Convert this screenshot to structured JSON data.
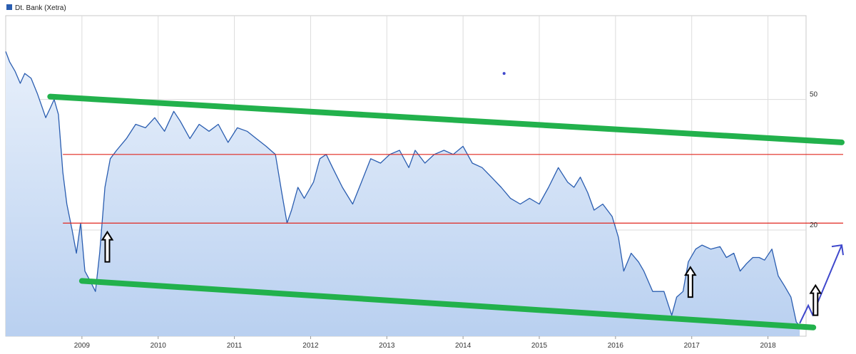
{
  "chart_data": {
    "type": "line",
    "series": [
      {
        "name": "Dt. Bank (Xetra)",
        "color": "#2a5db0",
        "points": [
          [
            "2008-01-01",
            70
          ],
          [
            "2008-01-20",
            65
          ],
          [
            "2008-02-15",
            61
          ],
          [
            "2008-03-10",
            56
          ],
          [
            "2008-04-01",
            60
          ],
          [
            "2008-05-01",
            58
          ],
          [
            "2008-06-01",
            52
          ],
          [
            "2008-06-20",
            48
          ],
          [
            "2008-07-10",
            44
          ],
          [
            "2008-08-01",
            47
          ],
          [
            "2008-08-20",
            50
          ],
          [
            "2008-09-10",
            45
          ],
          [
            "2008-10-01",
            30
          ],
          [
            "2008-10-20",
            24
          ],
          [
            "2008-11-15",
            20
          ],
          [
            "2008-12-05",
            17
          ],
          [
            "2008-12-25",
            21
          ],
          [
            "2009-01-15",
            15
          ],
          [
            "2009-02-10",
            14
          ],
          [
            "2009-03-05",
            13
          ],
          [
            "2009-03-25",
            17
          ],
          [
            "2009-04-20",
            27
          ],
          [
            "2009-05-15",
            33
          ],
          [
            "2009-06-15",
            35
          ],
          [
            "2009-08-01",
            38
          ],
          [
            "2009-09-15",
            42
          ],
          [
            "2009-11-01",
            41
          ],
          [
            "2009-12-15",
            44
          ],
          [
            "2010-02-01",
            40
          ],
          [
            "2010-03-15",
            46
          ],
          [
            "2010-04-15",
            43
          ],
          [
            "2010-06-01",
            38
          ],
          [
            "2010-07-15",
            42
          ],
          [
            "2010-09-01",
            40
          ],
          [
            "2010-10-15",
            42
          ],
          [
            "2010-12-01",
            37
          ],
          [
            "2011-01-15",
            41
          ],
          [
            "2011-03-01",
            40
          ],
          [
            "2011-04-15",
            38
          ],
          [
            "2011-06-01",
            36
          ],
          [
            "2011-07-15",
            34
          ],
          [
            "2011-08-15",
            26
          ],
          [
            "2011-09-10",
            21
          ],
          [
            "2011-10-01",
            23
          ],
          [
            "2011-11-01",
            27
          ],
          [
            "2011-12-01",
            25
          ],
          [
            "2012-01-15",
            28
          ],
          [
            "2012-02-15",
            33
          ],
          [
            "2012-03-15",
            34
          ],
          [
            "2012-04-15",
            31
          ],
          [
            "2012-06-01",
            27
          ],
          [
            "2012-07-20",
            24
          ],
          [
            "2012-09-01",
            28
          ],
          [
            "2012-10-15",
            33
          ],
          [
            "2012-12-01",
            32
          ],
          [
            "2013-01-15",
            34
          ],
          [
            "2013-03-01",
            35
          ],
          [
            "2013-04-15",
            31
          ],
          [
            "2013-05-15",
            35
          ],
          [
            "2013-07-01",
            32
          ],
          [
            "2013-08-15",
            34
          ],
          [
            "2013-10-01",
            35
          ],
          [
            "2013-11-15",
            34
          ],
          [
            "2014-01-01",
            36
          ],
          [
            "2014-02-15",
            32
          ],
          [
            "2014-04-01",
            31
          ],
          [
            "2014-05-15",
            29
          ],
          [
            "2014-07-01",
            27
          ],
          [
            "2014-08-15",
            25
          ],
          [
            "2014-10-01",
            24
          ],
          [
            "2014-11-15",
            25
          ],
          [
            "2015-01-01",
            24
          ],
          [
            "2015-02-15",
            27
          ],
          [
            "2015-04-01",
            31
          ],
          [
            "2015-05-15",
            28
          ],
          [
            "2015-06-15",
            27
          ],
          [
            "2015-07-15",
            29
          ],
          [
            "2015-08-20",
            26
          ],
          [
            "2015-09-20",
            23
          ],
          [
            "2015-11-01",
            24
          ],
          [
            "2015-12-15",
            22
          ],
          [
            "2016-01-15",
            19
          ],
          [
            "2016-02-10",
            15
          ],
          [
            "2016-03-15",
            17
          ],
          [
            "2016-04-20",
            16
          ],
          [
            "2016-05-15",
            15
          ],
          [
            "2016-06-27",
            13
          ],
          [
            "2016-07-20",
            13
          ],
          [
            "2016-08-20",
            13
          ],
          [
            "2016-09-27",
            11
          ],
          [
            "2016-10-20",
            12.5
          ],
          [
            "2016-11-20",
            13
          ],
          [
            "2016-12-15",
            16
          ],
          [
            "2017-01-20",
            17.5
          ],
          [
            "2017-02-20",
            18
          ],
          [
            "2017-04-01",
            17.5
          ],
          [
            "2017-05-15",
            17.8
          ],
          [
            "2017-06-15",
            16.5
          ],
          [
            "2017-07-20",
            17
          ],
          [
            "2017-08-20",
            15
          ],
          [
            "2017-09-20",
            15.8
          ],
          [
            "2017-10-20",
            16.5
          ],
          [
            "2017-11-20",
            16.5
          ],
          [
            "2017-12-15",
            16.2
          ],
          [
            "2018-01-20",
            17.5
          ],
          [
            "2018-02-20",
            14.5
          ],
          [
            "2018-03-20",
            13.5
          ],
          [
            "2018-04-20",
            12.5
          ],
          [
            "2018-05-15",
            10.5
          ],
          [
            "2018-06-01",
            10.2
          ]
        ]
      }
    ],
    "y_scale": "log",
    "ylim": [
      9.5,
      90
    ],
    "xlim": [
      "2008-01-01",
      "2018-07-01"
    ],
    "x_ticks": [
      "2009",
      "2010",
      "2011",
      "2012",
      "2013",
      "2014",
      "2015",
      "2016",
      "2017",
      "2018"
    ],
    "y_ticks": [
      {
        "value": 50,
        "label": "50"
      },
      {
        "value": 20,
        "label": "20"
      },
      {
        "value": 10,
        "label": ""
      }
    ],
    "grid": true,
    "legend": {
      "position": "top-left",
      "entries": [
        "Dt. Bank (Xetra)"
      ]
    },
    "annotations": {
      "channel_color": "#22b14c",
      "resistance_color": "#e0261e",
      "arrow_color": "#000000",
      "projection_color": "#3f48cc",
      "upper_channel": [
        [
          "2008-08-01",
          51
        ],
        [
          "2018-07-01",
          37
        ]
      ],
      "lower_channel": [
        [
          "2009-01-01",
          14
        ],
        [
          "2018-06-15",
          10.1
        ]
      ],
      "resistance_lines": [
        {
          "value": 34,
          "from": "2008-10-01",
          "to": "2018-07-01"
        },
        {
          "value": 21,
          "from": "2008-10-01",
          "to": "2018-07-01"
        }
      ],
      "up_arrows": [
        {
          "date": "2009-05-01",
          "value": 16
        },
        {
          "date": "2016-12-25",
          "value": 12.5
        },
        {
          "date": "2018-05-15",
          "value": 11
        }
      ],
      "projection": [
        [
          "2018-06-01",
          10.4
        ],
        [
          "2018-07-01",
          18
        ]
      ],
      "dot": [
        "2014-07-15",
        60
      ]
    }
  }
}
